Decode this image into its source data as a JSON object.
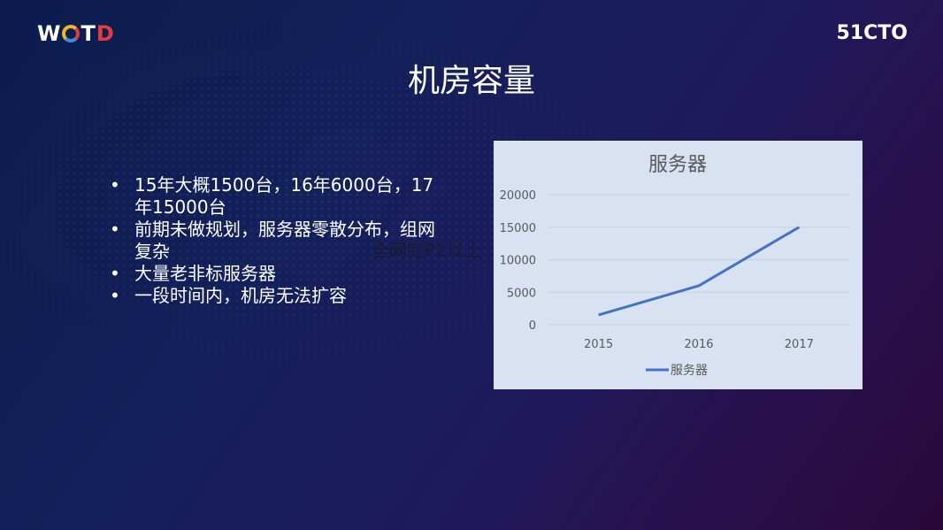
{
  "header": {
    "logo_left": {
      "part1": "W",
      "part2": "T",
      "part3": "D"
    },
    "logo_right": "51CTO"
  },
  "slide": {
    "title": "机房容量",
    "bullets": [
      "15年大概1500台，16年6000台，17年15000台",
      "前期未做规划，服务器零散分布，组网复杂",
      "大量老非标服务器",
      "一段时间内，机房无法扩容"
    ],
    "overlay_text": "全网完P2以上"
  },
  "chart_data": {
    "type": "line",
    "title": "服务器",
    "categories": [
      "2015",
      "2016",
      "2017"
    ],
    "series": [
      {
        "name": "服务器",
        "values": [
          1500,
          6000,
          15000
        ],
        "color": "#4472c4"
      }
    ],
    "yticks": [
      "0",
      "5000",
      "10000",
      "15000",
      "20000"
    ],
    "ylim": [
      0,
      20000
    ],
    "grid": true,
    "legend": "bottom",
    "background": "#d9e2f3"
  }
}
